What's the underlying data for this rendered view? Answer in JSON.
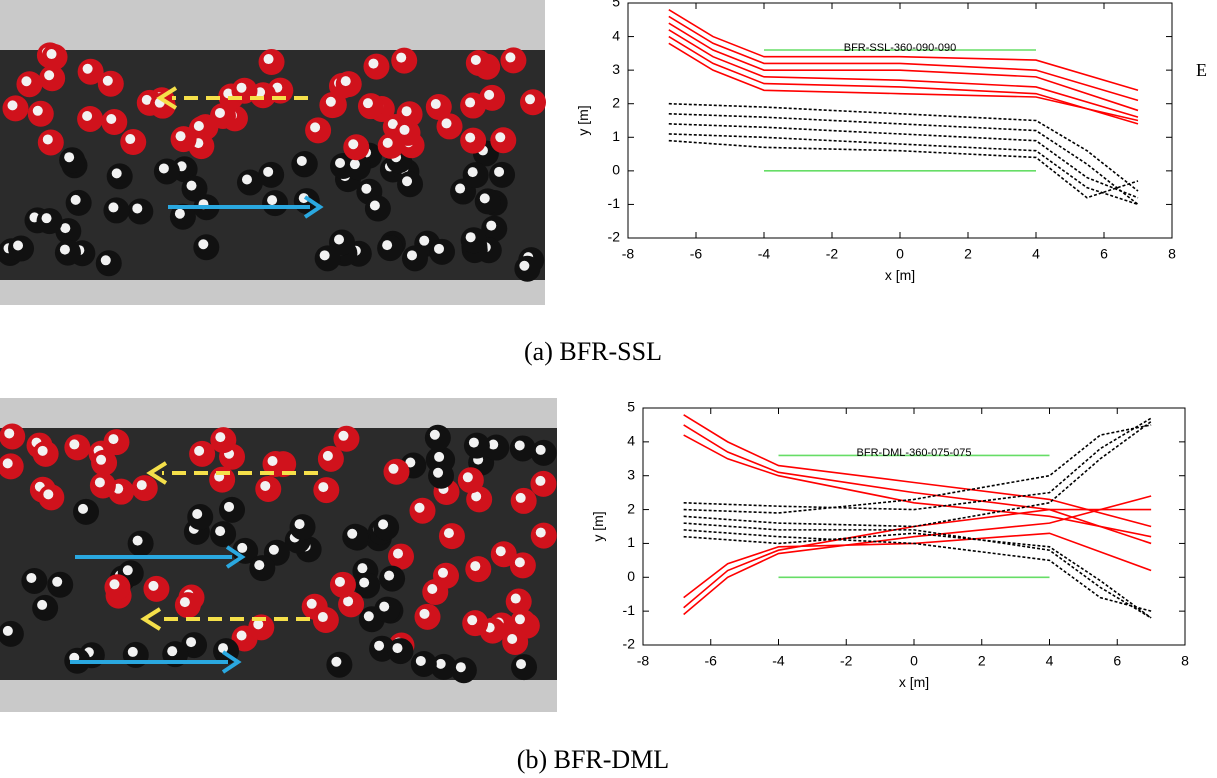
{
  "chart_data": [
    {
      "type": "line",
      "title": "BFR-SSL-360-090-090",
      "xlabel": "x [m]",
      "ylabel": "y [m]",
      "xlim": [
        -8,
        8
      ],
      "ylim": [
        -2,
        5
      ],
      "xticks": [
        -8,
        -6,
        -4,
        -2,
        0,
        2,
        4,
        6,
        8
      ],
      "yticks": [
        -2,
        -1,
        0,
        1,
        2,
        3,
        4,
        5
      ],
      "series": [
        {
          "color": "#ff0000",
          "dash": false,
          "x": [
            -6.8,
            -5.5,
            -4,
            0,
            4,
            7
          ],
          "values": [
            4.8,
            4.0,
            3.4,
            3.4,
            3.3,
            2.4
          ]
        },
        {
          "color": "#ff0000",
          "dash": false,
          "x": [
            -6.8,
            -5.5,
            -4,
            0,
            4,
            7
          ],
          "values": [
            4.6,
            3.8,
            3.2,
            3.2,
            3.0,
            2.1
          ]
        },
        {
          "color": "#ff0000",
          "dash": false,
          "x": [
            -6.8,
            -5.5,
            -4,
            0,
            4,
            7
          ],
          "values": [
            4.4,
            3.6,
            3.0,
            3.0,
            2.8,
            1.8
          ]
        },
        {
          "color": "#ff0000",
          "dash": false,
          "x": [
            -6.8,
            -5.5,
            -4,
            0,
            4,
            7
          ],
          "values": [
            4.2,
            3.4,
            2.8,
            2.7,
            2.5,
            1.6
          ]
        },
        {
          "color": "#ff0000",
          "dash": false,
          "x": [
            -6.8,
            -5.5,
            -4,
            0,
            4,
            7
          ],
          "values": [
            4.0,
            3.2,
            2.6,
            2.5,
            2.3,
            1.4
          ]
        },
        {
          "color": "#ff0000",
          "dash": false,
          "x": [
            -6.8,
            -5.5,
            -4,
            0,
            4,
            7
          ],
          "values": [
            3.8,
            3.0,
            2.4,
            2.3,
            2.2,
            1.5
          ]
        },
        {
          "color": "#000000",
          "dash": true,
          "x": [
            -6.8,
            -4,
            0,
            4,
            5.5,
            7
          ],
          "values": [
            2.0,
            1.9,
            1.7,
            1.5,
            0.6,
            -0.6
          ]
        },
        {
          "color": "#000000",
          "dash": true,
          "x": [
            -6.8,
            -4,
            0,
            4,
            5.5,
            7
          ],
          "values": [
            1.7,
            1.6,
            1.4,
            1.2,
            0.2,
            -1.0
          ]
        },
        {
          "color": "#000000",
          "dash": true,
          "x": [
            -6.8,
            -4,
            0,
            4,
            5.5,
            7
          ],
          "values": [
            1.4,
            1.3,
            1.1,
            0.9,
            -0.2,
            -0.8
          ]
        },
        {
          "color": "#000000",
          "dash": true,
          "x": [
            -6.8,
            -4,
            0,
            4,
            5.5,
            7
          ],
          "values": [
            1.1,
            1.0,
            0.8,
            0.6,
            -0.5,
            -1.0
          ]
        },
        {
          "color": "#000000",
          "dash": true,
          "x": [
            -6.8,
            -4,
            0,
            4,
            5.5,
            7
          ],
          "values": [
            0.9,
            0.7,
            0.6,
            0.4,
            -0.8,
            -0.3
          ]
        },
        {
          "color": "#66dd66",
          "dash": false,
          "x": [
            -4,
            4
          ],
          "values": [
            3.6,
            3.6
          ]
        },
        {
          "color": "#66dd66",
          "dash": false,
          "x": [
            -4,
            4
          ],
          "values": [
            0,
            0
          ]
        }
      ]
    },
    {
      "type": "line",
      "title": "BFR-DML-360-075-075",
      "xlabel": "x [m]",
      "ylabel": "y [m]",
      "xlim": [
        -8,
        8
      ],
      "ylim": [
        -2,
        5
      ],
      "xticks": [
        -8,
        -6,
        -4,
        -2,
        0,
        2,
        4,
        6,
        8
      ],
      "yticks": [
        -2,
        -1,
        0,
        1,
        2,
        3,
        4,
        5
      ],
      "series": [
        {
          "color": "#ff0000",
          "dash": false,
          "x": [
            -6.8,
            -5.5,
            -4,
            0,
            4,
            7
          ],
          "values": [
            4.8,
            4.0,
            3.3,
            2.8,
            2.3,
            1.5
          ]
        },
        {
          "color": "#ff0000",
          "dash": false,
          "x": [
            -6.8,
            -5.5,
            -4,
            0,
            4,
            7
          ],
          "values": [
            4.5,
            3.7,
            3.1,
            2.5,
            2.0,
            2.0
          ]
        },
        {
          "color": "#ff0000",
          "dash": false,
          "x": [
            -6.8,
            -5.5,
            -4,
            0,
            4,
            7
          ],
          "values": [
            4.2,
            3.5,
            3.0,
            2.2,
            1.8,
            1.2
          ]
        },
        {
          "color": "#ff0000",
          "dash": false,
          "x": [
            -6.8,
            -5.5,
            -4,
            0,
            4,
            7
          ],
          "values": [
            -1.1,
            0.0,
            0.7,
            1.2,
            1.6,
            2.4
          ]
        },
        {
          "color": "#ff0000",
          "dash": false,
          "x": [
            -6.8,
            -5.5,
            -4,
            0,
            4,
            7
          ],
          "values": [
            -0.9,
            0.2,
            0.8,
            1.5,
            2.0,
            1.0
          ]
        },
        {
          "color": "#ff0000",
          "dash": false,
          "x": [
            -6.8,
            -5.5,
            -4,
            0,
            4,
            7
          ],
          "values": [
            -0.6,
            0.4,
            0.9,
            1.0,
            1.3,
            0.2
          ]
        },
        {
          "color": "#000000",
          "dash": true,
          "x": [
            -6.8,
            -4,
            0,
            4,
            5.5,
            7
          ],
          "values": [
            2.2,
            2.1,
            2.0,
            2.5,
            3.8,
            4.7
          ]
        },
        {
          "color": "#000000",
          "dash": true,
          "x": [
            -6.8,
            -4,
            0,
            4,
            5.5,
            7
          ],
          "values": [
            2.0,
            1.9,
            2.3,
            3.0,
            4.2,
            4.5
          ]
        },
        {
          "color": "#000000",
          "dash": true,
          "x": [
            -6.8,
            -4,
            0,
            4,
            5.5,
            7
          ],
          "values": [
            1.8,
            1.6,
            1.5,
            2.2,
            3.5,
            4.6
          ]
        },
        {
          "color": "#000000",
          "dash": true,
          "x": [
            -6.8,
            -4,
            0,
            4,
            5.5,
            7
          ],
          "values": [
            1.6,
            1.4,
            1.4,
            0.8,
            -0.3,
            -1.2
          ]
        },
        {
          "color": "#000000",
          "dash": true,
          "x": [
            -6.8,
            -4,
            0,
            4,
            5.5,
            7
          ],
          "values": [
            1.4,
            1.2,
            1.0,
            0.5,
            -0.6,
            -1.0
          ]
        },
        {
          "color": "#000000",
          "dash": true,
          "x": [
            -6.8,
            -4,
            0,
            4,
            5.5,
            7
          ],
          "values": [
            1.2,
            1.0,
            1.3,
            0.9,
            -0.1,
            -1.2
          ]
        },
        {
          "color": "#66dd66",
          "dash": false,
          "x": [
            -4,
            4
          ],
          "values": [
            3.6,
            3.6
          ]
        },
        {
          "color": "#66dd66",
          "dash": false,
          "x": [
            -4,
            4
          ],
          "values": [
            0,
            0
          ]
        }
      ]
    }
  ],
  "captions": [
    "(a) BFR-SSL",
    "(b) BFR-DML"
  ],
  "margin_text": "E"
}
